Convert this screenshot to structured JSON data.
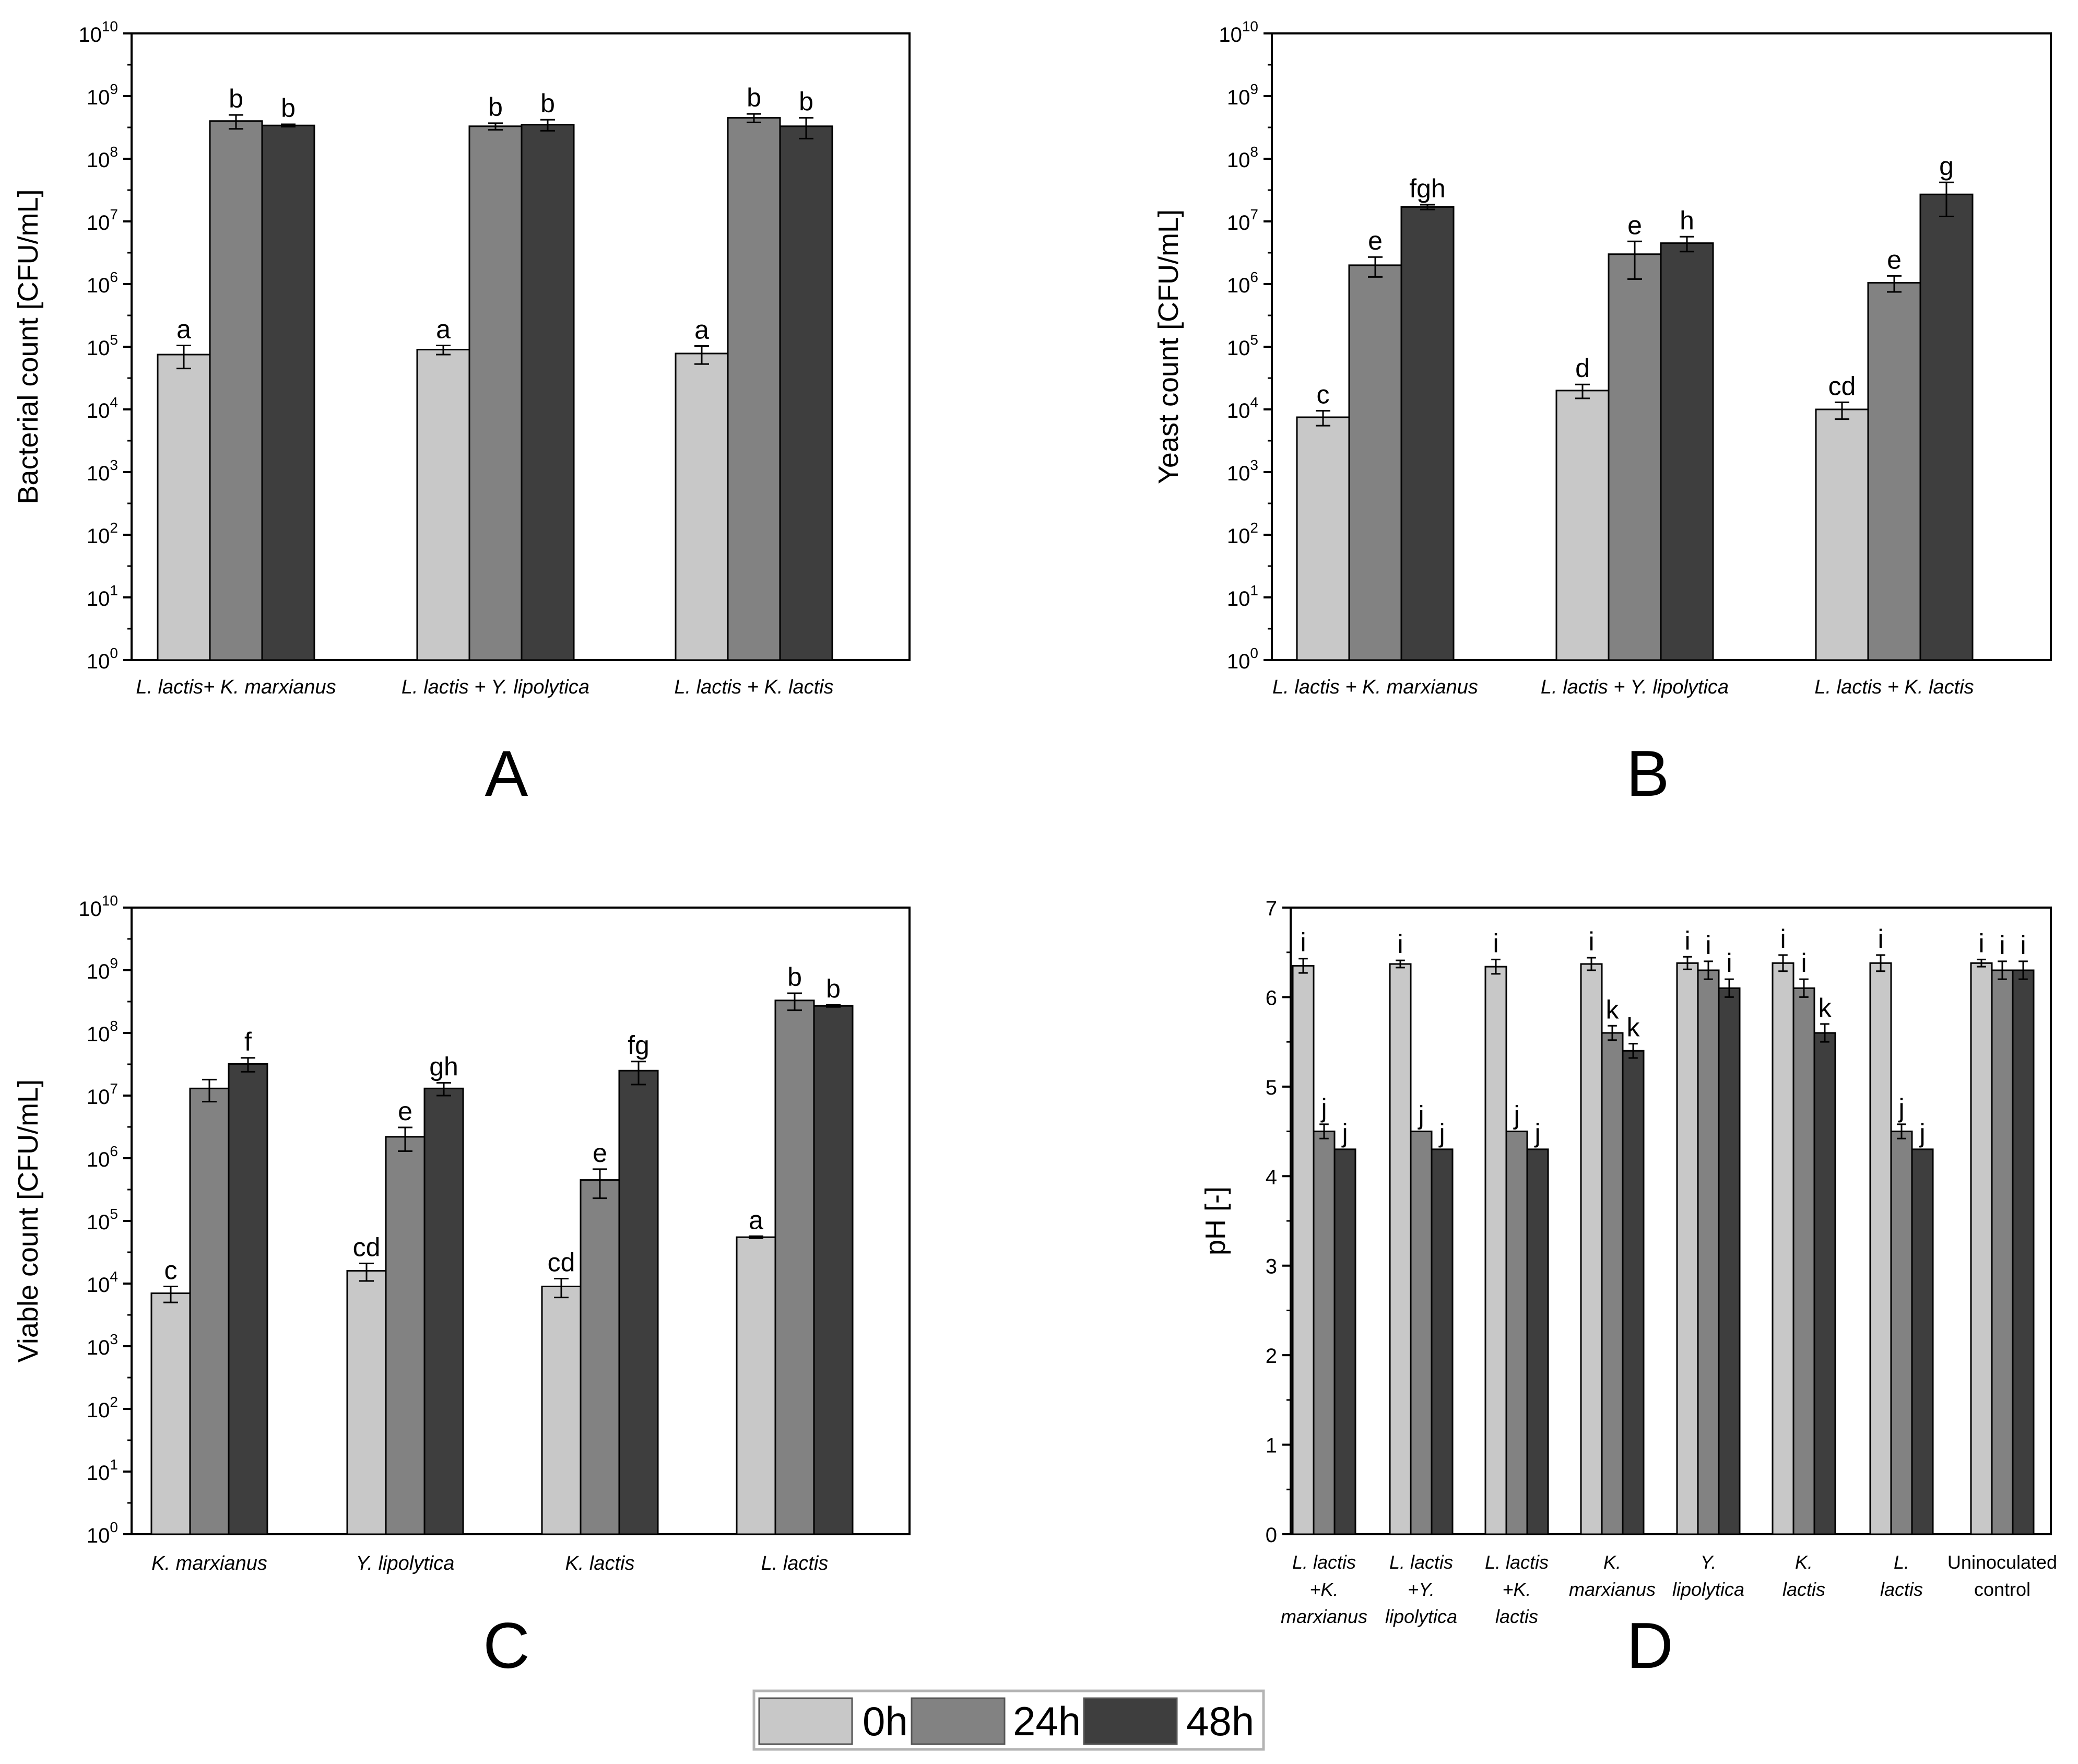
{
  "legend": {
    "items": [
      {
        "label": "0h",
        "color": "#c8c8c8"
      },
      {
        "label": "24h",
        "color": "#828282"
      },
      {
        "label": "48h",
        "color": "#3e3e3e"
      }
    ]
  },
  "chart_data": [
    {
      "id": "A",
      "panel_label": "A",
      "type": "bar",
      "scale": "log",
      "ylabel": "Bacterial count [CFU/mL]",
      "ylim": [
        1,
        10000000000
      ],
      "y_tick_exponents": [
        "0",
        "1",
        "2",
        "3",
        "4",
        "5",
        "6",
        "7",
        "8",
        "9",
        "10"
      ],
      "categories": [
        [
          {
            "text": "L. lactis+ K. marxianus",
            "italic": true
          }
        ],
        [
          {
            "text": "L. lactis + Y. lipolytica",
            "italic": true
          }
        ],
        [
          {
            "text": "L. lactis + K. lactis",
            "italic": true
          }
        ]
      ],
      "series": [
        {
          "name": "0h",
          "values": [
            75000,
            90000,
            78000
          ],
          "errors": [
            30000,
            15000,
            25000
          ],
          "labels": [
            "a",
            "a",
            "a"
          ]
        },
        {
          "name": "24h",
          "values": [
            400000000,
            330000000,
            450000000
          ],
          "errors": [
            100000000,
            40000000,
            70000000
          ],
          "labels": [
            "b",
            "b",
            "b"
          ]
        },
        {
          "name": "48h",
          "values": [
            340000000,
            350000000,
            330000000
          ],
          "errors": [
            15000000,
            70000000,
            120000000
          ],
          "labels": [
            "b",
            "b",
            "b"
          ]
        }
      ]
    },
    {
      "id": "B",
      "panel_label": "B",
      "type": "bar",
      "scale": "log",
      "ylabel": "Yeast count [CFU/mL]",
      "ylim": [
        1,
        10000000000
      ],
      "y_tick_exponents": [
        "0",
        "1",
        "2",
        "3",
        "4",
        "5",
        "6",
        "7",
        "8",
        "9",
        "10"
      ],
      "categories": [
        [
          {
            "text": "L. lactis + K. marxianus",
            "italic": true
          }
        ],
        [
          {
            "text": "L. lactis + Y. lipolytica",
            "italic": true
          }
        ],
        [
          {
            "text": "L. lactis + K. lactis",
            "italic": true
          }
        ]
      ],
      "series": [
        {
          "name": "0h",
          "values": [
            7500,
            20000,
            10000
          ],
          "errors": [
            2000,
            5000,
            3000
          ],
          "labels": [
            "c",
            "d",
            "cd"
          ]
        },
        {
          "name": "24h",
          "values": [
            2000000,
            3000000,
            1050000
          ],
          "errors": [
            700000,
            1800000,
            300000
          ],
          "labels": [
            "e",
            "e",
            "e"
          ]
        },
        {
          "name": "48h",
          "values": [
            17000000,
            4500000,
            27000000
          ],
          "errors": [
            1500000,
            1200000,
            15000000
          ],
          "labels": [
            "fgh",
            "h",
            "g"
          ]
        }
      ]
    },
    {
      "id": "C",
      "panel_label": "C",
      "type": "bar",
      "scale": "log",
      "ylabel": "Viable count [CFU/mL]",
      "ylim": [
        1,
        10000000000
      ],
      "y_tick_exponents": [
        "0",
        "1",
        "2",
        "3",
        "4",
        "5",
        "6",
        "7",
        "8",
        "9",
        "10"
      ],
      "categories": [
        [
          {
            "text": "K. marxianus",
            "italic": true
          }
        ],
        [
          {
            "text": "Y. lipolytica",
            "italic": true
          }
        ],
        [
          {
            "text": "K. lactis",
            "italic": true
          }
        ],
        [
          {
            "text": "L. lactis",
            "italic": true
          }
        ]
      ],
      "series": [
        {
          "name": "0h",
          "values": [
            7000,
            16000,
            9000,
            55000
          ],
          "errors": [
            2000,
            5000,
            3000,
            2000
          ],
          "labels": [
            "c",
            "cd",
            "cd",
            "a"
          ]
        },
        {
          "name": "24h",
          "values": [
            13000000,
            2200000,
            450000,
            330000000
          ],
          "errors": [
            5000000,
            900000,
            220000,
            100000000
          ],
          "labels": [
            "",
            "e",
            "e",
            "b"
          ]
        },
        {
          "name": "48h",
          "values": [
            32000000,
            13000000,
            25000000,
            270000000
          ],
          "errors": [
            8000000,
            3000000,
            10000000,
            10000000
          ],
          "labels": [
            "f",
            "gh",
            "fg",
            "b"
          ]
        }
      ]
    },
    {
      "id": "D",
      "panel_label": "D",
      "type": "bar",
      "scale": "linear",
      "ylabel": "pH [-]",
      "ylim": [
        0,
        7
      ],
      "y_ticks": [
        "0",
        "1",
        "2",
        "3",
        "4",
        "5",
        "6",
        "7"
      ],
      "categories": [
        [
          {
            "text": "L. lactis",
            "italic": true
          },
          {
            "text": "+K.",
            "italic": true
          },
          {
            "text": "marxianus",
            "italic": true
          }
        ],
        [
          {
            "text": "L. lactis",
            "italic": true
          },
          {
            "text": "+Y.",
            "italic": true
          },
          {
            "text": "lipolytica",
            "italic": true
          }
        ],
        [
          {
            "text": "L. lactis",
            "italic": true
          },
          {
            "text": "+K.",
            "italic": true
          },
          {
            "text": "lactis",
            "italic": true
          }
        ],
        [
          {
            "text": "K.",
            "italic": true
          },
          {
            "text": "marxianus",
            "italic": true
          }
        ],
        [
          {
            "text": "Y.",
            "italic": true
          },
          {
            "text": "lipolytica",
            "italic": true
          }
        ],
        [
          {
            "text": "K.",
            "italic": true
          },
          {
            "text": "lactis",
            "italic": true
          }
        ],
        [
          {
            "text": "L.",
            "italic": true
          },
          {
            "text": "lactis",
            "italic": true
          }
        ],
        [
          {
            "text": "Uninoculated",
            "italic": false
          },
          {
            "text": "control",
            "italic": false
          }
        ]
      ],
      "series": [
        {
          "name": "0h",
          "values": [
            6.35,
            6.37,
            6.34,
            6.37,
            6.38,
            6.38,
            6.38,
            6.38
          ],
          "errors": [
            0.08,
            0.04,
            0.08,
            0.07,
            0.07,
            0.09,
            0.09,
            0.04
          ],
          "labels": [
            "i",
            "i",
            "i",
            "i",
            "i",
            "i",
            "i",
            "i"
          ]
        },
        {
          "name": "24h",
          "values": [
            4.5,
            4.5,
            4.5,
            5.6,
            6.3,
            6.1,
            4.5,
            6.3
          ],
          "errors": [
            0.08,
            0,
            0,
            0.08,
            0.1,
            0.1,
            0.08,
            0.1
          ],
          "labels": [
            "j",
            "j",
            "j",
            "k",
            "i",
            "i",
            "j",
            "i"
          ]
        },
        {
          "name": "48h",
          "values": [
            4.3,
            4.3,
            4.3,
            5.4,
            6.1,
            5.6,
            4.3,
            6.3
          ],
          "errors": [
            0,
            0,
            0,
            0.08,
            0.1,
            0.1,
            0,
            0.1
          ],
          "labels": [
            "j",
            "j",
            "j",
            "k",
            "i",
            "k",
            "j",
            "i"
          ]
        }
      ]
    }
  ]
}
